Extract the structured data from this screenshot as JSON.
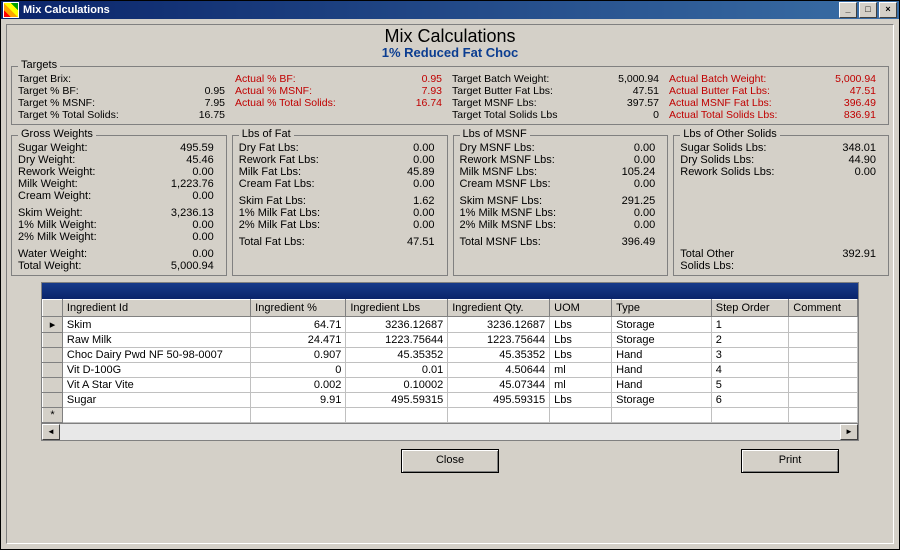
{
  "window": {
    "title": "Mix Calculations",
    "page_title": "Mix Calculations",
    "product": "1% Reduced Fat Choc"
  },
  "targets": {
    "legend": "Targets",
    "left": [
      {
        "k": "Target Brix:",
        "v": ""
      },
      {
        "k": "Target % BF:",
        "v": "0.95"
      },
      {
        "k": "Target % MSNF:",
        "v": "7.95"
      },
      {
        "k": "Target % Total Solids:",
        "v": "16.75"
      }
    ],
    "actual_pct": [
      {
        "k": "",
        "v": ""
      },
      {
        "k": "Actual % BF:",
        "v": "0.95"
      },
      {
        "k": "Actual % MSNF:",
        "v": "7.93"
      },
      {
        "k": "Actual % Total Solids:",
        "v": "16.74"
      }
    ],
    "mid": [
      {
        "k": "Target Batch Weight:",
        "v": "5,000.94"
      },
      {
        "k": "Target Butter Fat Lbs:",
        "v": "47.51"
      },
      {
        "k": "Target MSNF Lbs:",
        "v": "397.57"
      },
      {
        "k": "Target Total Solids Lbs",
        "v": "0"
      }
    ],
    "actual_lbs": [
      {
        "k": "Actual Batch Weight:",
        "v": "5,000.94"
      },
      {
        "k": "Actual Butter Fat Lbs:",
        "v": "47.51"
      },
      {
        "k": "Actual MSNF Fat Lbs:",
        "v": "396.49"
      },
      {
        "k": "Actual Total Solids Lbs:",
        "v": "836.91"
      }
    ]
  },
  "gross": {
    "legend": "Gross Weights",
    "top": [
      {
        "k": "Sugar Weight:",
        "v": "495.59"
      },
      {
        "k": "Dry Weight:",
        "v": "45.46"
      },
      {
        "k": "Rework Weight:",
        "v": "0.00"
      },
      {
        "k": "Milk Weight:",
        "v": "1,223.76"
      },
      {
        "k": "Cream Weight:",
        "v": "0.00"
      }
    ],
    "mid": [
      {
        "k": "Skim Weight:",
        "v": "3,236.13"
      },
      {
        "k": "1% Milk Weight:",
        "v": "0.00"
      },
      {
        "k": "2% Milk Weight:",
        "v": "0.00"
      }
    ],
    "bot": [
      {
        "k": "Water Weight:",
        "v": "0.00"
      },
      {
        "k": "Total Weight:",
        "v": "5,000.94"
      }
    ]
  },
  "fat": {
    "legend": "Lbs of Fat",
    "top": [
      {
        "k": "",
        "v": ""
      },
      {
        "k": "Dry Fat Lbs:",
        "v": "0.00"
      },
      {
        "k": "Rework Fat Lbs:",
        "v": "0.00"
      },
      {
        "k": "Milk Fat Lbs:",
        "v": "45.89"
      },
      {
        "k": "Cream Fat Lbs:",
        "v": "0.00"
      }
    ],
    "mid": [
      {
        "k": "Skim Fat Lbs:",
        "v": "1.62"
      },
      {
        "k": "1% Milk Fat Lbs:",
        "v": "0.00"
      },
      {
        "k": "2% Milk Fat Lbs:",
        "v": "0.00"
      }
    ],
    "bot": [
      {
        "k": "",
        "v": ""
      },
      {
        "k": "Total Fat Lbs:",
        "v": "47.51"
      }
    ]
  },
  "msnf": {
    "legend": "Lbs of MSNF",
    "top": [
      {
        "k": "",
        "v": ""
      },
      {
        "k": "Dry MSNF Lbs:",
        "v": "0.00"
      },
      {
        "k": "Rework MSNF Lbs:",
        "v": "0.00"
      },
      {
        "k": "Milk MSNF Lbs:",
        "v": "105.24"
      },
      {
        "k": "Cream MSNF Lbs:",
        "v": "0.00"
      }
    ],
    "mid": [
      {
        "k": "Skim MSNF Lbs:",
        "v": "291.25"
      },
      {
        "k": "1% Milk MSNF Lbs:",
        "v": "0.00"
      },
      {
        "k": "2% Milk MSNF Lbs:",
        "v": "0.00"
      }
    ],
    "bot": [
      {
        "k": "",
        "v": ""
      },
      {
        "k": "Total MSNF Lbs:",
        "v": "396.49"
      }
    ]
  },
  "other": {
    "legend": "Lbs of Other Solids",
    "top": [
      {
        "k": "Sugar Solids Lbs:",
        "v": "348.01"
      },
      {
        "k": "Dry Solids Lbs:",
        "v": "44.90"
      },
      {
        "k": "Rework Solids Lbs:",
        "v": "0.00"
      }
    ],
    "total": {
      "k": "Total Other\nSolids Lbs:",
      "v": "392.91"
    }
  },
  "grid": {
    "columns": [
      "Ingredient Id",
      "Ingredient %",
      "Ingredient Lbs",
      "Ingredient Qty.",
      "UOM",
      "Type",
      "Step Order",
      "Comment"
    ],
    "rows": [
      [
        "Skim",
        "64.71",
        "3236.12687",
        "3236.12687",
        "Lbs",
        "Storage",
        "1",
        ""
      ],
      [
        "Raw Milk",
        "24.471",
        "1223.75644",
        "1223.75644",
        "Lbs",
        "Storage",
        "2",
        ""
      ],
      [
        "Choc Dairy Pwd NF 50-98-0007",
        "0.907",
        "45.35352",
        "45.35352",
        "Lbs",
        "Hand",
        "3",
        ""
      ],
      [
        "Vit D-100G",
        "0",
        "0.01",
        "4.50644",
        "ml",
        "Hand",
        "4",
        ""
      ],
      [
        "Vit A Star Vite",
        "0.002",
        "0.10002",
        "45.07344",
        "ml",
        "Hand",
        "5",
        ""
      ],
      [
        "Sugar",
        "9.91",
        "495.59315",
        "495.59315",
        "Lbs",
        "Storage",
        "6",
        ""
      ]
    ]
  },
  "buttons": {
    "close": "Close",
    "print": "Print"
  }
}
